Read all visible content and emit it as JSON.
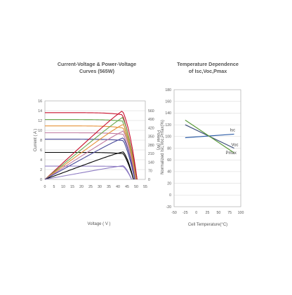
{
  "chart_data": [
    {
      "type": "line",
      "title": [
        "Current-Voltage & Power-Voltage",
        "Curves (565W)"
      ],
      "xlabel": "Voltage ( V )",
      "ylabel": "Current ( A )",
      "y2label": "Power (W)",
      "xlim": [
        0,
        55
      ],
      "ylim": [
        0,
        16
      ],
      "y2lim": [
        0,
        640
      ],
      "xticks": [
        "0",
        "5",
        "10",
        "15",
        "20",
        "25",
        "30",
        "35",
        "40",
        "45",
        "50",
        "55"
      ],
      "yticks": [
        "0",
        "2",
        "4",
        "6",
        "8",
        "10",
        "12",
        "14",
        "16"
      ],
      "y2ticks": [
        "0",
        "70",
        "140",
        "210",
        "280",
        "350",
        "420",
        "490",
        "560"
      ],
      "grid": true,
      "series": [
        {
          "color": "#c8102e",
          "isc": 13.6,
          "pmax_v": 42.5,
          "pmax_w": 560,
          "voc": 50.5
        },
        {
          "color": "#6aa84f",
          "isc": 12.2,
          "pmax_v": 42.5,
          "pmax_w": 505,
          "voc": 50.0
        },
        {
          "color": "#e69138",
          "isc": 10.9,
          "pmax_v": 43.0,
          "pmax_w": 450,
          "voc": 49.8
        },
        {
          "color": "#c27ba0",
          "isc": 9.5,
          "pmax_v": 43.0,
          "pmax_w": 395,
          "voc": 49.5
        },
        {
          "color": "#4a4a9a",
          "isc": 8.2,
          "pmax_v": 43.0,
          "pmax_w": 340,
          "voc": 49.2
        },
        {
          "color": "#000000",
          "isc": 5.5,
          "pmax_v": 43.0,
          "pmax_w": 225,
          "voc": 48.5
        },
        {
          "color": "#8e7cc3",
          "isc": 2.7,
          "pmax_v": 43.0,
          "pmax_w": 112,
          "voc": 47.5
        }
      ]
    },
    {
      "type": "line",
      "title": [
        "Temperature Dependence",
        "of Isc,Voc,Pmax"
      ],
      "xlabel": "Cell Temperature(°C)",
      "ylabel": "Normalized Isc,Voc,Pmax(%)",
      "xlim": [
        -50,
        100
      ],
      "ylim": [
        -20,
        180
      ],
      "xticks": [
        "-50",
        "-25",
        "0",
        "25",
        "50",
        "75",
        "100"
      ],
      "yticks": [
        "-20",
        "0",
        "20",
        "40",
        "60",
        "80",
        "100",
        "120",
        "140",
        "160",
        "180"
      ],
      "grid": true,
      "series": [
        {
          "name": "Isc",
          "color": "#2e5ea8",
          "x": [
            -25,
            85
          ],
          "y": [
            98,
            104
          ]
        },
        {
          "name": "Voc",
          "color": "#3d4f7a",
          "x": [
            -25,
            85
          ],
          "y": [
            120,
            80
          ]
        },
        {
          "name": "Pmax",
          "color": "#5a9a3a",
          "x": [
            -25,
            85
          ],
          "y": [
            128,
            72
          ]
        }
      ]
    }
  ]
}
